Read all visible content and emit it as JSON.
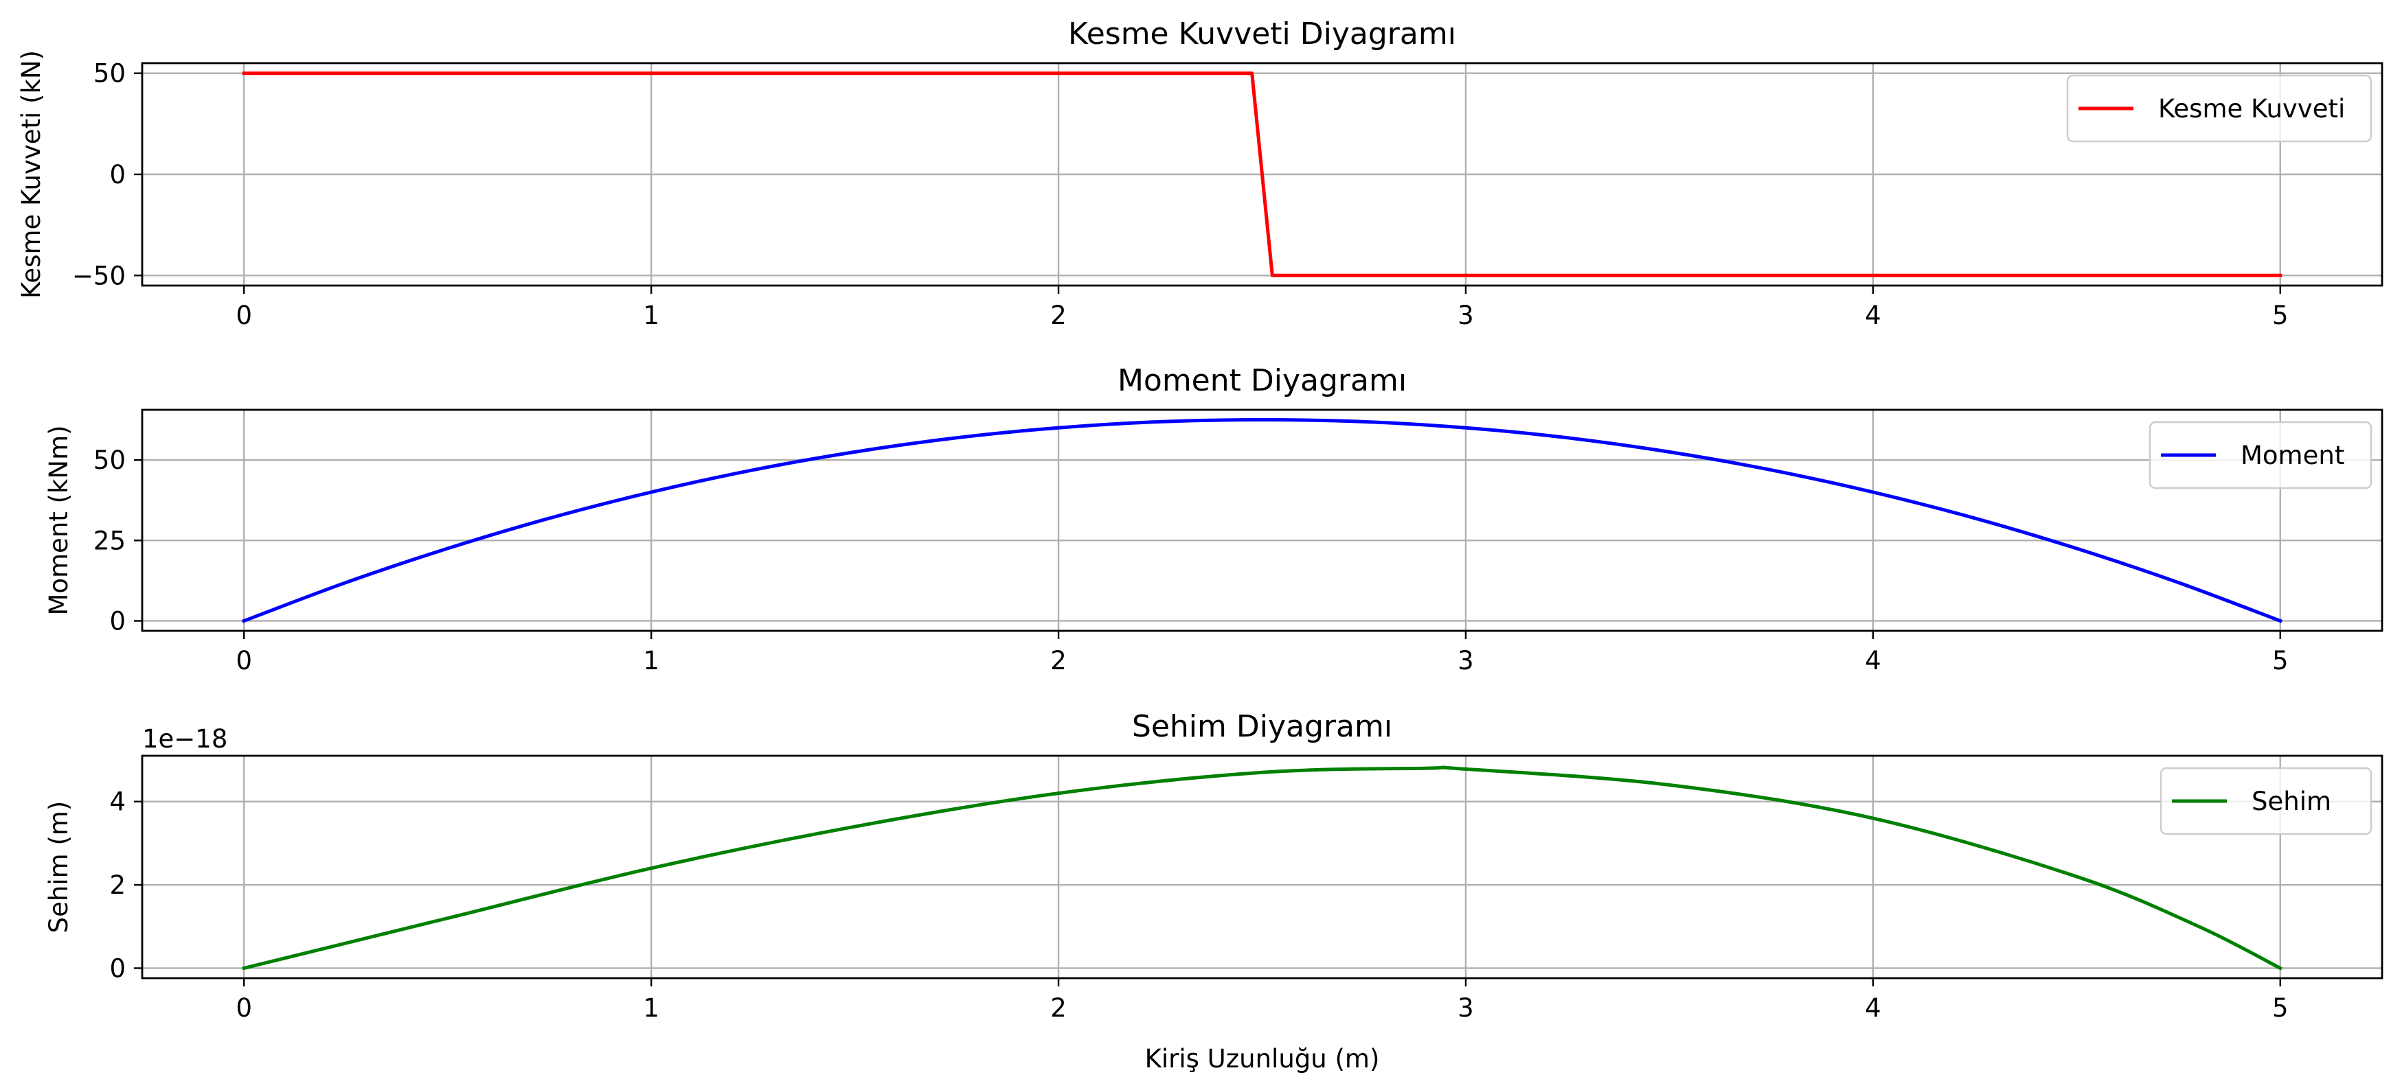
{
  "chart_data": [
    {
      "type": "line",
      "title": "Kesme Kuvveti Diyagramı",
      "xlabel": "",
      "ylabel": "Kesme Kuvveti (kN)",
      "xlim": [
        -0.25,
        5.25
      ],
      "ylim": [
        -55,
        55
      ],
      "xticks": [
        "0",
        "1",
        "2",
        "3",
        "4",
        "5"
      ],
      "yticks": [
        "50",
        "0",
        "−50"
      ],
      "ytick_values": [
        50,
        0,
        -50
      ],
      "grid": true,
      "legend": "upper right",
      "series": [
        {
          "name": "Kesme Kuvveti",
          "color": "#ff0000",
          "x": [
            0,
            2.475,
            2.525,
            5
          ],
          "y": [
            50,
            50,
            -50,
            -50
          ]
        }
      ]
    },
    {
      "type": "line",
      "title": "Moment Diyagramı",
      "xlabel": "",
      "ylabel": "Moment (kNm)",
      "xlim": [
        -0.25,
        5.25
      ],
      "ylim": [
        -3.1,
        65.6
      ],
      "xticks": [
        "0",
        "1",
        "2",
        "3",
        "4",
        "5"
      ],
      "yticks": [
        "50",
        "25",
        "0"
      ],
      "ytick_values": [
        50,
        25,
        0
      ],
      "grid": true,
      "legend": "upper right",
      "series": [
        {
          "name": "Moment",
          "color": "#0000ff",
          "x": [
            0,
            0.25,
            0.5,
            0.75,
            1,
            1.25,
            1.5,
            1.75,
            2,
            2.25,
            2.5,
            2.75,
            3,
            3.25,
            3.5,
            3.75,
            4,
            4.25,
            4.5,
            4.75,
            5
          ],
          "y": [
            0,
            11.9,
            22.5,
            31.9,
            40,
            46.9,
            52.5,
            56.9,
            60,
            61.9,
            62.5,
            61.9,
            60,
            56.9,
            52.5,
            46.9,
            40,
            31.9,
            22.5,
            11.9,
            0
          ]
        }
      ]
    },
    {
      "type": "line",
      "title": "Sehim Diyagramı",
      "xlabel": "Kiriş Uzunluğu (m)",
      "ylabel": "Sehim (m)",
      "y_offset_label": "1e−18",
      "xlim": [
        -0.25,
        5.25
      ],
      "ylim": [
        -0.24,
        5.1
      ],
      "xticks": [
        "0",
        "1",
        "2",
        "3",
        "4",
        "5"
      ],
      "yticks": [
        "4",
        "2",
        "0"
      ],
      "ytick_values": [
        4,
        2,
        0
      ],
      "grid": true,
      "legend": "upper right",
      "series": [
        {
          "name": "Sehim",
          "color": "#008000",
          "x": [
            0,
            0.5,
            1,
            1.5,
            2,
            2.5,
            2.9,
            3,
            3.5,
            4,
            4.5,
            4.8,
            5
          ],
          "y": [
            0,
            1.2,
            2.4,
            3.4,
            4.2,
            4.7,
            4.8,
            4.78,
            4.4,
            3.6,
            2.2,
            1.0,
            0
          ]
        }
      ]
    }
  ]
}
